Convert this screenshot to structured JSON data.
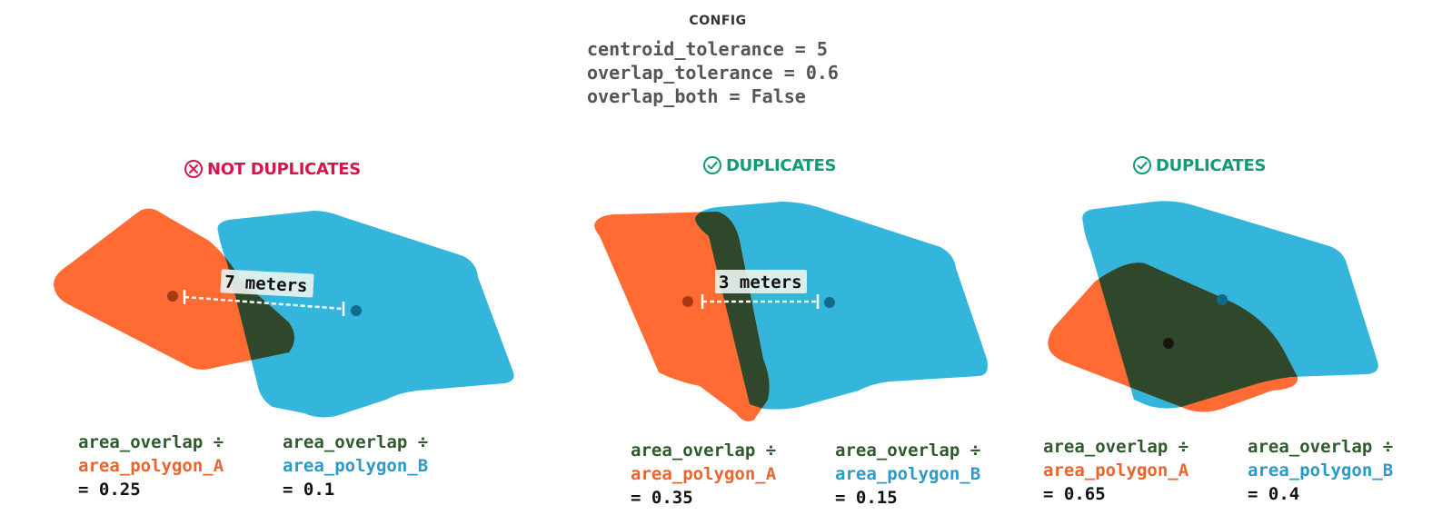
{
  "config": {
    "title": "CONFIG",
    "lines": [
      "centroid_tolerance = 5",
      "overlap_tolerance = 0.6",
      "overlap_both = False"
    ]
  },
  "colors": {
    "polygon_a": "#ff6b33",
    "polygon_b": "#33b5dc",
    "overlap": "#2f472a",
    "not_duplicate": "#d6164a",
    "duplicate": "#139b74"
  },
  "panels": [
    {
      "verdict": "NOT DUPLICATES",
      "verdict_icon": "x-circle-icon",
      "distance_label": "7 meters",
      "formula_a": {
        "line1": "area_overlap ÷",
        "line2": "area_polygon_A",
        "result": "= 0.25"
      },
      "formula_b": {
        "line1": "area_overlap ÷",
        "line2": "area_polygon_B",
        "result": "= 0.1"
      }
    },
    {
      "verdict": "DUPLICATES",
      "verdict_icon": "check-circle-icon",
      "distance_label": "3 meters",
      "formula_a": {
        "line1": "area_overlap ÷",
        "line2": "area_polygon_A",
        "result": "= 0.35"
      },
      "formula_b": {
        "line1": "area_overlap ÷",
        "line2": "area_polygon_B",
        "result": "= 0.15"
      }
    },
    {
      "verdict": "DUPLICATES",
      "verdict_icon": "check-circle-icon",
      "distance_label": "",
      "formula_a": {
        "line1": "area_overlap ÷",
        "line2": "area_polygon_A",
        "result": "= 0.65"
      },
      "formula_b": {
        "line1": "area_overlap ÷",
        "line2": "area_polygon_B",
        "result": "= 0.4"
      }
    }
  ]
}
